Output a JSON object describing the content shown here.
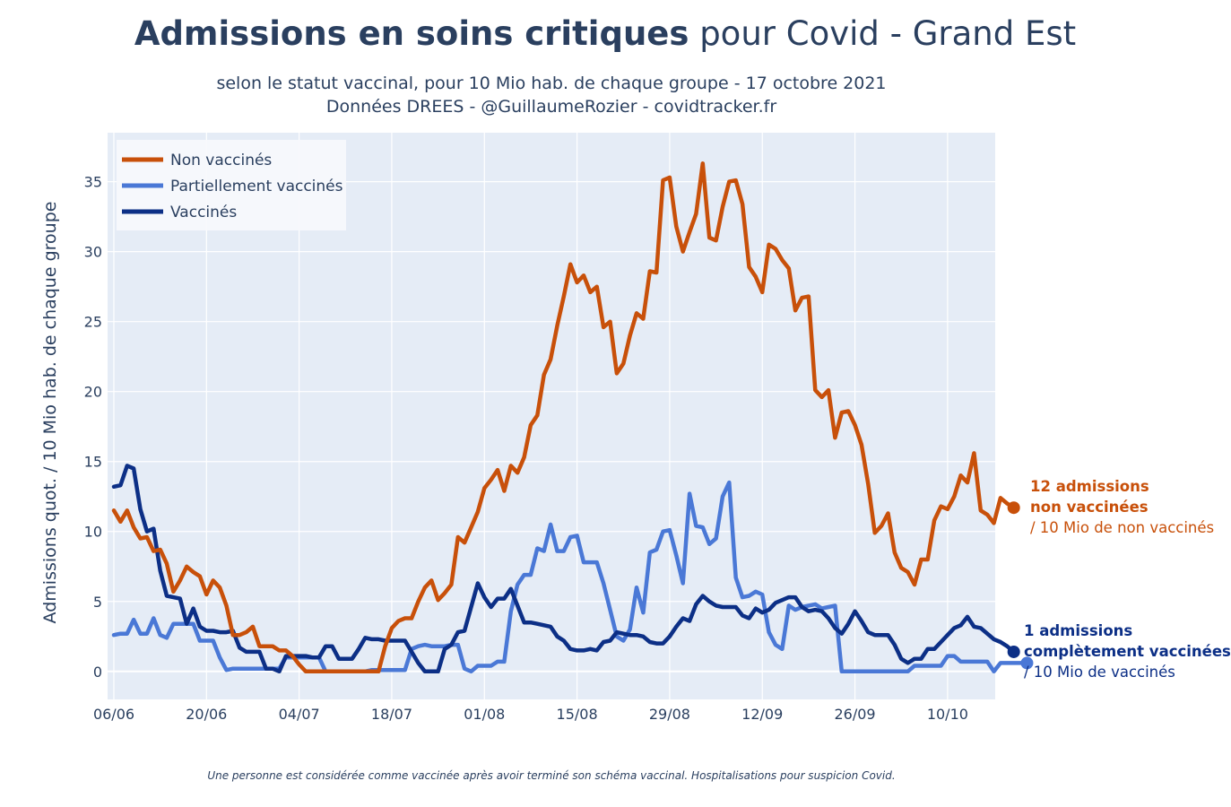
{
  "title_bold": "Admissions en soins critiques",
  "title_rest": " pour Covid - Grand Est",
  "subtitle_line1": "selon le statut vaccinal, pour 10 Mio hab. de chaque groupe - 17 octobre 2021",
  "subtitle_line2": "Données DREES - @GuillaumeRozier - covidtracker.fr",
  "footnote": "Une personne est considérée comme vaccinée après avoir terminé son schéma vaccinal. Hospitalisations pour suspicion Covid.",
  "annotations": {
    "unvax_line1": "12 admissions",
    "unvax_line2": "non vaccinées",
    "unvax_line3": "/ 10 Mio de non vaccinés",
    "vax_line1": "1 admissions",
    "vax_line2": "complètement vaccinées",
    "vax_line3": "/ 10 Mio de vaccinés"
  },
  "colors": {
    "unvax": "#c8500a",
    "partial": "#4a78d6",
    "vax": "#0c2f86",
    "plot_bg": "#e5ecf6"
  },
  "chart_data": {
    "type": "line",
    "ylabel": "Admissions quot. / 10 Mio hab. de chaque groupe",
    "xlabel": "",
    "x_start": "2021-06-06",
    "x_end": "2021-10-17",
    "ylim": [
      -2,
      38.5
    ],
    "yticks": [
      0,
      5,
      10,
      15,
      20,
      25,
      30,
      35
    ],
    "xtick_labels": [
      "06/06",
      "20/06",
      "04/07",
      "18/07",
      "01/08",
      "15/08",
      "29/08",
      "12/09",
      "26/09",
      "10/10"
    ],
    "grid": true,
    "legend_position": "top-left",
    "series": [
      {
        "name": "Non vaccinés",
        "values": [
          11.5,
          10.7,
          11.5,
          10.3,
          9.5,
          9.6,
          8.6,
          8.7,
          7.7,
          5.7,
          6.5,
          7.5,
          7.1,
          6.8,
          5.5,
          6.5,
          6.0,
          4.7,
          2.6,
          2.6,
          2.8,
          3.2,
          1.8,
          1.8,
          1.8,
          1.5,
          1.5,
          1.1,
          0.5,
          0.0,
          0.0,
          0.0,
          0.0,
          0.0,
          0.0,
          0.0,
          0.0,
          0.0,
          0.0,
          0.0,
          0.0,
          1.8,
          3.1,
          3.6,
          3.8,
          3.8,
          5.0,
          6.0,
          6.5,
          5.1,
          5.6,
          6.2,
          9.6,
          9.2,
          10.3,
          11.4,
          13.1,
          13.7,
          14.4,
          12.9,
          14.7,
          14.2,
          15.3,
          17.6,
          18.3,
          21.2,
          22.3,
          24.7,
          26.8,
          29.1,
          27.8,
          28.3,
          27.1,
          27.5,
          24.6,
          25.0,
          21.3,
          22.0,
          24.0,
          25.6,
          25.2,
          28.6,
          28.5,
          35.1,
          35.3,
          31.8,
          30.0,
          31.4,
          32.7,
          36.3,
          31.0,
          30.8,
          33.2,
          35.0,
          35.1,
          33.4,
          28.9,
          28.2,
          27.1,
          30.5,
          30.2,
          29.4,
          28.8,
          25.8,
          26.7,
          26.8,
          20.1,
          19.6,
          20.1,
          16.7,
          18.5,
          18.6,
          17.6,
          16.2,
          13.4,
          9.9,
          10.4,
          11.3,
          8.5,
          7.4,
          7.1,
          6.2,
          8.0,
          8.0,
          10.8,
          11.8,
          11.6,
          12.5,
          14.0,
          13.5,
          15.6,
          11.5,
          11.2,
          10.6,
          12.4,
          12.0,
          11.7
        ]
      },
      {
        "name": "Partiellement vaccinés",
        "values": [
          2.6,
          2.7,
          2.7,
          3.7,
          2.7,
          2.7,
          3.8,
          2.6,
          2.4,
          3.4,
          3.4,
          3.4,
          3.4,
          2.2,
          2.2,
          2.2,
          1.0,
          0.1,
          0.2,
          0.2,
          0.2,
          0.2,
          0.2,
          0.2,
          0.2,
          0.2,
          1.0,
          1.0,
          1.0,
          1.0,
          1.0,
          1.0,
          0.0,
          0.0,
          0.0,
          0.0,
          0.0,
          0.0,
          0.0,
          0.1,
          0.1,
          0.1,
          0.1,
          0.1,
          0.1,
          1.6,
          1.8,
          1.9,
          1.8,
          1.8,
          1.8,
          1.9,
          1.9,
          0.2,
          0.0,
          0.4,
          0.4,
          0.4,
          0.7,
          0.7,
          4.3,
          6.2,
          6.9,
          6.9,
          8.8,
          8.6,
          10.5,
          8.6,
          8.6,
          9.6,
          9.7,
          7.8,
          7.8,
          7.8,
          6.3,
          4.4,
          2.5,
          2.2,
          3.0,
          6.0,
          4.2,
          8.5,
          8.7,
          10.0,
          10.1,
          8.3,
          6.3,
          12.7,
          10.4,
          10.3,
          9.1,
          9.5,
          12.5,
          13.5,
          6.7,
          5.3,
          5.4,
          5.7,
          5.5,
          2.8,
          1.9,
          1.6,
          4.7,
          4.4,
          4.6,
          4.7,
          4.8,
          4.5,
          4.6,
          4.7,
          0.0,
          0.0,
          0.0,
          0.0,
          0.0,
          0.0,
          0.0,
          0.0,
          0.0,
          0.0,
          0.0,
          0.4,
          0.4,
          0.4,
          0.4,
          0.4,
          1.1,
          1.1,
          0.7,
          0.7,
          0.7,
          0.7,
          0.7,
          0.0,
          0.6,
          0.6,
          0.6,
          0.6,
          0.6
        ]
      },
      {
        "name": "Vaccinés",
        "values": [
          13.2,
          13.3,
          14.7,
          14.5,
          11.6,
          10.0,
          10.2,
          7.2,
          5.4,
          5.3,
          5.2,
          3.4,
          4.5,
          3.2,
          2.9,
          2.9,
          2.8,
          2.8,
          2.9,
          1.7,
          1.4,
          1.4,
          1.4,
          0.2,
          0.2,
          0.0,
          1.1,
          1.1,
          1.1,
          1.1,
          1.0,
          1.0,
          1.8,
          1.8,
          0.9,
          0.9,
          0.9,
          1.6,
          2.4,
          2.3,
          2.3,
          2.2,
          2.2,
          2.2,
          2.2,
          1.4,
          0.6,
          0.0,
          0.0,
          0.0,
          1.6,
          1.9,
          2.8,
          2.9,
          4.6,
          6.3,
          5.3,
          4.6,
          5.2,
          5.2,
          5.9,
          4.7,
          3.5,
          3.5,
          3.4,
          3.3,
          3.2,
          2.5,
          2.2,
          1.6,
          1.5,
          1.5,
          1.6,
          1.5,
          2.1,
          2.2,
          2.8,
          2.7,
          2.6,
          2.6,
          2.5,
          2.1,
          2.0,
          2.0,
          2.5,
          3.2,
          3.8,
          3.6,
          4.8,
          5.4,
          5.0,
          4.7,
          4.6,
          4.6,
          4.6,
          4.0,
          3.8,
          4.5,
          4.2,
          4.4,
          4.9,
          5.1,
          5.3,
          5.3,
          4.6,
          4.3,
          4.4,
          4.3,
          3.8,
          3.1,
          2.7,
          3.4,
          4.3,
          3.6,
          2.8,
          2.6,
          2.6,
          2.6,
          1.9,
          0.9,
          0.6,
          0.9,
          0.9,
          1.6,
          1.6,
          2.1,
          2.6,
          3.1,
          3.3,
          3.9,
          3.2,
          3.1,
          2.7,
          2.3,
          2.1,
          1.8,
          1.4
        ]
      }
    ]
  }
}
